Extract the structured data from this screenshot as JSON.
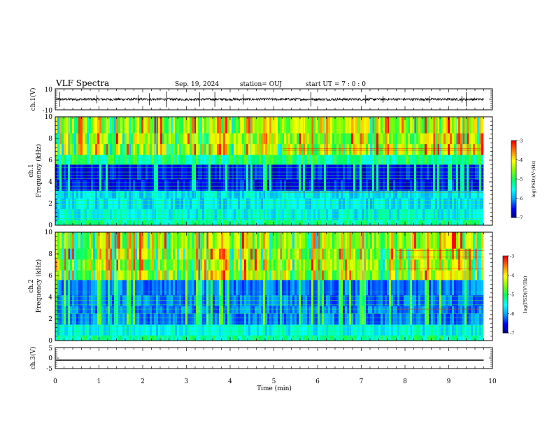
{
  "header": {
    "title": "VLF Spectra",
    "date": "Sep. 19, 2024",
    "station": "station= OUJ",
    "start": "start  UT =   7 : 0  : 0"
  },
  "chart_data": [
    {
      "type": "line",
      "name": "ch1-waveform",
      "ylabel": "ch.1(V)",
      "ylim": [
        -10,
        10
      ],
      "yticks": [
        "10",
        "-10"
      ],
      "xlim": [
        0,
        10
      ],
      "baseline": 0,
      "data_end": 9.8,
      "noise_amplitude": 1.2,
      "spikes": [
        0.1,
        0.95,
        1.9,
        2.15,
        2.55,
        3.3,
        3.65,
        4.3,
        5.85,
        7.1,
        7.5,
        8.55,
        9.3,
        9.4
      ]
    },
    {
      "type": "heatmap",
      "name": "ch1-spectrogram",
      "ylabel": "ch.1\nFrequency  (kHz)",
      "ylim": [
        0,
        10
      ],
      "yticks": [
        "0",
        "2",
        "4",
        "6",
        "8",
        "10"
      ],
      "xlim": [
        0,
        10
      ],
      "data_end": 9.8,
      "zlim": [
        -7,
        -3
      ],
      "colorbar_label": "log(PSD)(V²/Hz)",
      "colorbar_ticks": [
        "-3",
        "-4",
        "-5",
        "-6",
        "-7"
      ],
      "lines_khz": [
        0.3,
        0.6,
        1.0,
        1.3,
        1.6,
        1.9,
        2.3,
        2.6,
        3.0,
        3.3,
        3.6,
        3.9,
        4.3,
        4.6,
        4.9,
        5.3,
        5.6,
        6.0
      ],
      "lines_red_khz": [
        7.05,
        6.9,
        3.05
      ],
      "band_low_khz": [
        3.2,
        5.6
      ],
      "band_high_khz": [
        6.5,
        10
      ]
    },
    {
      "type": "heatmap",
      "name": "ch2-spectrogram",
      "ylabel": "ch.2\nFrequency  (kHz)",
      "ylim": [
        0,
        10
      ],
      "yticks": [
        "0",
        "2",
        "4",
        "6",
        "8",
        "10"
      ],
      "xlim": [
        0,
        10
      ],
      "data_end": 9.8,
      "zlim": [
        -7,
        -3
      ],
      "colorbar_label": "log(PSD)(V²/Hz)",
      "colorbar_ticks": [
        "-3",
        "-4",
        "-5",
        "-6",
        "-7"
      ],
      "lines_khz": [
        0.4,
        0.8,
        1.3,
        1.7,
        2.1,
        2.5,
        2.9,
        3.3,
        3.7,
        4.1,
        4.5
      ],
      "lines_red_khz": [
        8.3,
        7.7,
        6.6,
        2.9
      ],
      "band_low_khz": [
        1.5,
        5.0
      ],
      "band_high_khz": [
        5.5,
        10
      ]
    },
    {
      "type": "line",
      "name": "ch3-waveform",
      "ylabel": "ch.3(V)",
      "ylim": [
        -5,
        5
      ],
      "yticks": [
        "5",
        "0",
        "-5"
      ],
      "xlim": [
        0,
        10
      ],
      "baseline": -1.0,
      "data_end": 9.8
    }
  ],
  "xaxis": {
    "label": "Time  (min)",
    "ticks": [
      "0",
      "1",
      "2",
      "3",
      "4",
      "5",
      "6",
      "7",
      "8",
      "9",
      "10"
    ]
  },
  "colors": {
    "colormap": [
      "#000080",
      "#0000ff",
      "#00a0ff",
      "#00ffff",
      "#00ff60",
      "#80ff00",
      "#ffff00",
      "#ff8000",
      "#ff0000",
      "#ffffff"
    ]
  }
}
